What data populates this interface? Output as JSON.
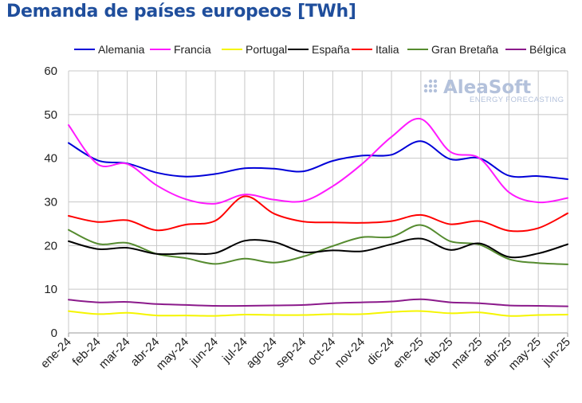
{
  "chart_data": {
    "type": "line",
    "title": "Demanda de países europeos [TWh]",
    "xlabel": "",
    "ylabel": "",
    "ylim": [
      0,
      60
    ],
    "yticks": [
      0,
      10,
      20,
      30,
      40,
      50,
      60
    ],
    "grid": true,
    "legend_position": "top",
    "categories": [
      "ene-24",
      "feb-24",
      "mar-24",
      "abr-24",
      "may-24",
      "jun-24",
      "jul-24",
      "ago-24",
      "sep-24",
      "oct-24",
      "nov-24",
      "dic-24",
      "ene-25",
      "feb-25",
      "mar-25",
      "abr-25",
      "may-25",
      "jun-25"
    ],
    "series": [
      {
        "name": "Alemania",
        "color": "#0000d8",
        "values": [
          43.5,
          39.5,
          38.8,
          36.7,
          35.8,
          36.4,
          37.7,
          37.6,
          37.0,
          39.4,
          40.6,
          40.8,
          43.9,
          39.8,
          40.0,
          36.0,
          35.9,
          35.2
        ]
      },
      {
        "name": "Francia",
        "color": "#ff1aff",
        "values": [
          47.6,
          38.6,
          38.7,
          33.8,
          30.6,
          29.6,
          31.7,
          30.5,
          30.2,
          33.6,
          38.7,
          44.9,
          49.0,
          41.5,
          40.0,
          32.2,
          29.9,
          30.9
        ]
      },
      {
        "name": "Portugal",
        "color": "#f5f500",
        "values": [
          5.0,
          4.3,
          4.6,
          4.0,
          4.0,
          3.9,
          4.2,
          4.1,
          4.1,
          4.3,
          4.3,
          4.8,
          5.0,
          4.5,
          4.7,
          3.9,
          4.1,
          4.2
        ]
      },
      {
        "name": "España",
        "color": "#000000",
        "values": [
          21.0,
          19.2,
          19.5,
          18.1,
          18.2,
          18.3,
          21.1,
          20.8,
          18.5,
          18.9,
          18.7,
          20.3,
          21.6,
          19.0,
          20.5,
          17.4,
          18.2,
          20.3
        ]
      },
      {
        "name": "Italia",
        "color": "#ff0000",
        "values": [
          26.8,
          25.4,
          25.8,
          23.5,
          24.8,
          25.7,
          31.3,
          27.3,
          25.5,
          25.3,
          25.2,
          25.6,
          27.0,
          24.9,
          25.6,
          23.4,
          24.0,
          27.4
        ]
      },
      {
        "name": "Gran Bretaña",
        "color": "#558b2f",
        "values": [
          23.6,
          20.4,
          20.6,
          18.1,
          17.1,
          15.8,
          17.0,
          16.1,
          17.5,
          19.9,
          21.9,
          22.0,
          24.7,
          21.0,
          20.2,
          16.9,
          16.0,
          15.7
        ]
      },
      {
        "name": "Bélgica",
        "color": "#8b1a8b",
        "values": [
          7.6,
          7.0,
          7.1,
          6.6,
          6.4,
          6.2,
          6.2,
          6.3,
          6.4,
          6.8,
          7.0,
          7.2,
          7.7,
          7.0,
          6.8,
          6.3,
          6.2,
          6.1
        ]
      }
    ]
  },
  "logo": {
    "main": "AleaSoft",
    "sub": "ENERGY FORECASTING"
  }
}
